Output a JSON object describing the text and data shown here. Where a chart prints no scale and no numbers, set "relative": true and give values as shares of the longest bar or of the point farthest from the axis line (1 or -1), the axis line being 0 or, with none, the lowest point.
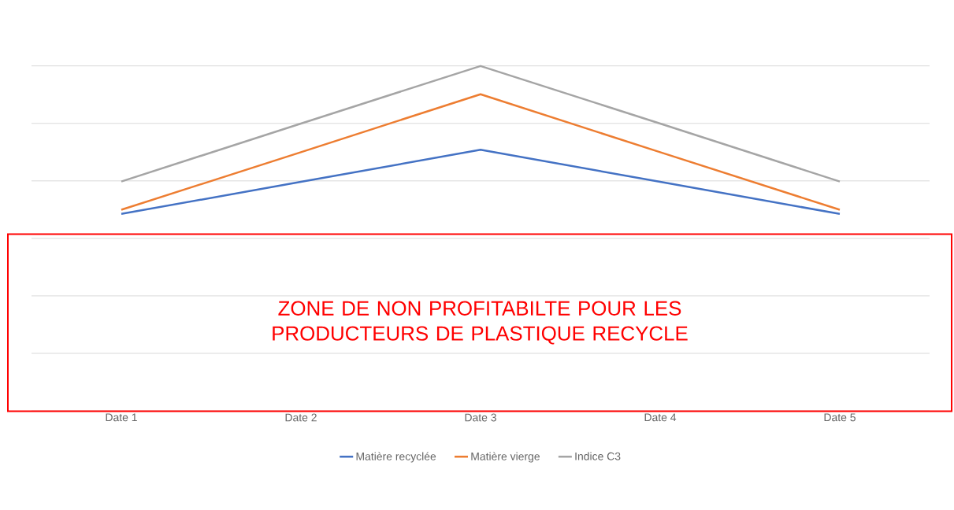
{
  "chart_data": {
    "type": "line",
    "relative": true,
    "categories": [
      "Date 1",
      "Date 2",
      "Date 3",
      "Date 4",
      "Date 5"
    ],
    "series": [
      {
        "name": "Matière recyclée",
        "color": "#4472c4",
        "values": [
          0.571,
          0.664,
          0.757,
          0.664,
          0.571
        ]
      },
      {
        "name": "Matière vierge",
        "color": "#ed7d31",
        "values": [
          0.583,
          0.75,
          0.918,
          0.75,
          0.583
        ]
      },
      {
        "name": "Indice C3",
        "color": "#a5a5a5",
        "values": [
          0.665,
          0.833,
          1,
          0.833,
          0.665
        ]
      }
    ],
    "grid": "y",
    "legend": "bottom",
    "marker": "none",
    "line_style": "solid",
    "annotations": [
      "ZONE DE NON PROFITABILTE POUR LES PRODUCTEURS DE PLASTIQUE RECYCLE"
    ]
  }
}
